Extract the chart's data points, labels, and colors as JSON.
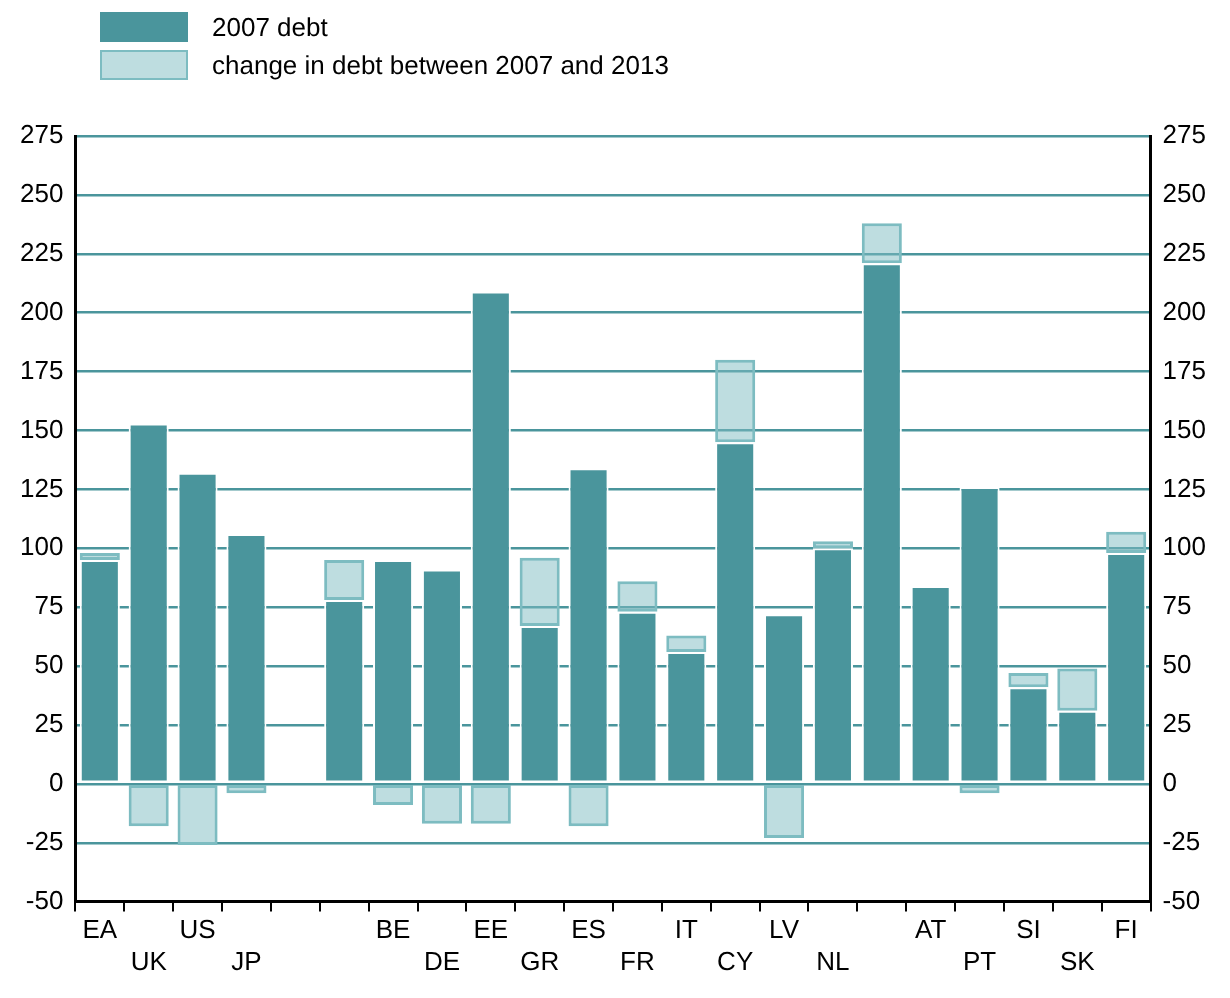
{
  "chart_data": {
    "type": "bar",
    "stacked": true,
    "categories": [
      "EA",
      "UK",
      "US",
      "JP",
      null,
      null,
      "BE",
      "DE",
      "EE",
      "GR",
      "ES",
      "FR",
      "IT",
      "CY",
      "LV",
      "NL",
      null,
      "AT",
      "PT",
      "SI",
      "SK",
      "FI"
    ],
    "series": [
      {
        "name": "2007 debt",
        "color": "#4a959c",
        "values": [
          95,
          153,
          132,
          106,
          null,
          78,
          95,
          91,
          209,
          67,
          134,
          73,
          56,
          145,
          72,
          100,
          221,
          84,
          126,
          41,
          31,
          98
        ]
      },
      {
        "name": "change in debt between 2007 and 2013",
        "color": "#7dbcc1",
        "values": [
          3,
          -18,
          -26,
          -4,
          null,
          17,
          -9,
          -17,
          -17,
          29,
          -18,
          13,
          7,
          35,
          -23,
          3,
          17,
          null,
          -4,
          6,
          18,
          9
        ]
      }
    ],
    "ylim": [
      -50,
      275
    ],
    "yticks": [
      -50,
      -25,
      0,
      25,
      50,
      75,
      100,
      125,
      150,
      175,
      200,
      225,
      250,
      275
    ],
    "y2lim": [
      -50,
      275
    ],
    "y2ticks": [
      -50,
      -25,
      0,
      25,
      50,
      75,
      100,
      125,
      150,
      175,
      200,
      225,
      250,
      275
    ],
    "grid": "y",
    "legend": "top left"
  }
}
